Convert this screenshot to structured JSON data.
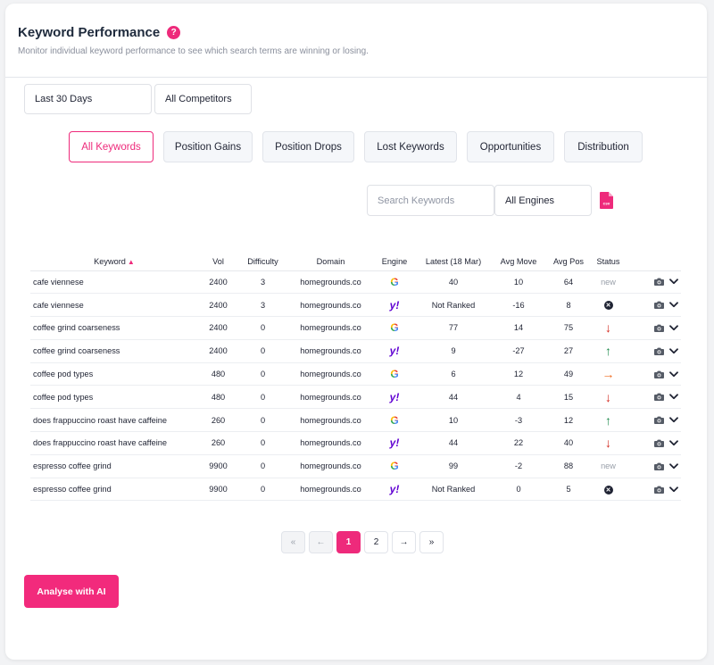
{
  "header": {
    "title": "Keyword Performance",
    "help_icon": "?",
    "subtitle": "Monitor individual keyword performance to see which search terms are winning or losing."
  },
  "filters": {
    "date_range": "Last 30 Days",
    "competitors": "All Competitors",
    "engines": "All Engines",
    "search_placeholder": "Search Keywords",
    "csv_label": "csv"
  },
  "tabs": [
    {
      "label": "All Keywords",
      "active": true
    },
    {
      "label": "Position Gains",
      "active": false
    },
    {
      "label": "Position Drops",
      "active": false
    },
    {
      "label": "Lost Keywords",
      "active": false
    },
    {
      "label": "Opportunities",
      "active": false
    },
    {
      "label": "Distribution",
      "active": false
    }
  ],
  "table": {
    "columns": [
      "Keyword",
      "Vol",
      "Difficulty",
      "Domain",
      "Engine",
      "Latest (18 Mar)",
      "Avg Move",
      "Avg Pos",
      "Status"
    ],
    "sort_indicator": "▲",
    "rows": [
      {
        "keyword": "cafe viennese",
        "vol": "2400",
        "difficulty": "3",
        "domain": "homegrounds.co",
        "engine": "google",
        "latest": "40",
        "avg_move": "10",
        "avg_pos": "64",
        "status": "new"
      },
      {
        "keyword": "cafe viennese",
        "vol": "2400",
        "difficulty": "3",
        "domain": "homegrounds.co",
        "engine": "yahoo",
        "latest": "Not Ranked",
        "avg_move": "-16",
        "avg_pos": "8",
        "status": "lost"
      },
      {
        "keyword": "coffee grind coarseness",
        "vol": "2400",
        "difficulty": "0",
        "domain": "homegrounds.co",
        "engine": "google",
        "latest": "77",
        "avg_move": "14",
        "avg_pos": "75",
        "status": "down"
      },
      {
        "keyword": "coffee grind coarseness",
        "vol": "2400",
        "difficulty": "0",
        "domain": "homegrounds.co",
        "engine": "yahoo",
        "latest": "9",
        "avg_move": "-27",
        "avg_pos": "27",
        "status": "up"
      },
      {
        "keyword": "coffee pod types",
        "vol": "480",
        "difficulty": "0",
        "domain": "homegrounds.co",
        "engine": "google",
        "latest": "6",
        "avg_move": "12",
        "avg_pos": "49",
        "status": "right"
      },
      {
        "keyword": "coffee pod types",
        "vol": "480",
        "difficulty": "0",
        "domain": "homegrounds.co",
        "engine": "yahoo",
        "latest": "44",
        "avg_move": "4",
        "avg_pos": "15",
        "status": "down"
      },
      {
        "keyword": "does frappuccino roast have caffeine",
        "vol": "260",
        "difficulty": "0",
        "domain": "homegrounds.co",
        "engine": "google",
        "latest": "10",
        "avg_move": "-3",
        "avg_pos": "12",
        "status": "up"
      },
      {
        "keyword": "does frappuccino roast have caffeine",
        "vol": "260",
        "difficulty": "0",
        "domain": "homegrounds.co",
        "engine": "yahoo",
        "latest": "44",
        "avg_move": "22",
        "avg_pos": "40",
        "status": "down"
      },
      {
        "keyword": "espresso coffee grind",
        "vol": "9900",
        "difficulty": "0",
        "domain": "homegrounds.co",
        "engine": "google",
        "latest": "99",
        "avg_move": "-2",
        "avg_pos": "88",
        "status": "new"
      },
      {
        "keyword": "espresso coffee grind",
        "vol": "9900",
        "difficulty": "0",
        "domain": "homegrounds.co",
        "engine": "yahoo",
        "latest": "Not Ranked",
        "avg_move": "0",
        "avg_pos": "5",
        "status": "lost"
      }
    ]
  },
  "pagination": {
    "first": "«",
    "prev": "←",
    "pages": [
      "1",
      "2"
    ],
    "current": "1",
    "next": "→",
    "last": "»"
  },
  "status_labels": {
    "new": "new"
  },
  "engine_labels": {
    "google": "G",
    "yahoo": "y!"
  },
  "actions": {
    "analyse_label": "Analyse with AI"
  },
  "colors": {
    "accent": "#ee2a7b",
    "up": "#1e8a4c",
    "down": "#d42b20",
    "right": "#ef6a1f"
  }
}
